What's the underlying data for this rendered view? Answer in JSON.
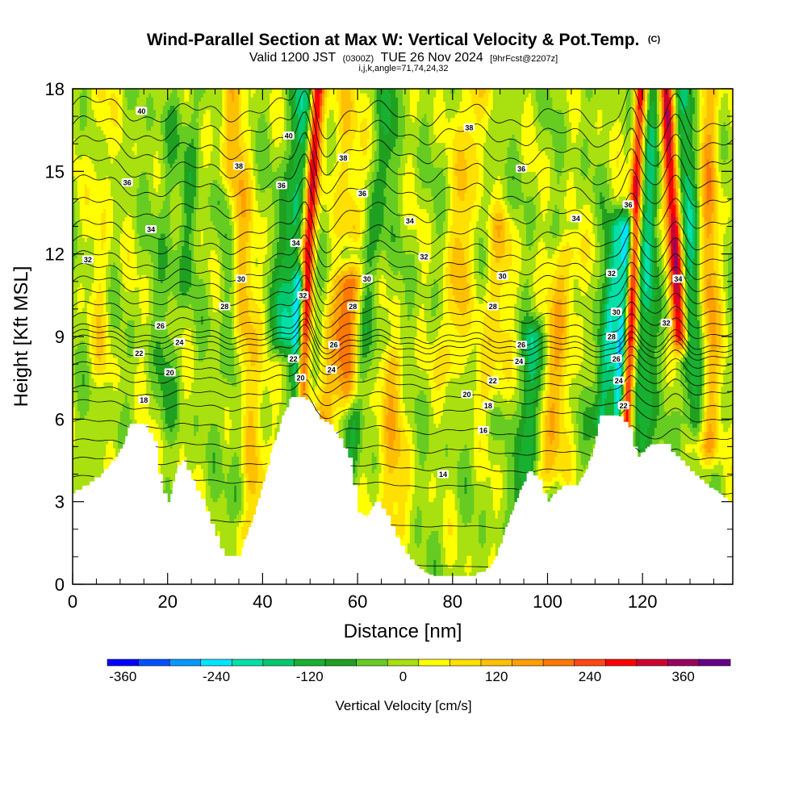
{
  "header": {
    "title": "Wind-Parallel Section at Max W: Vertical Velocity & Pot.Temp.",
    "title_mark": "(C)",
    "subtitle_a": "Valid 1200 JST",
    "subtitle_b": "(0300Z)",
    "subtitle_c": "TUE 26 Nov 2024",
    "subtitle_d": "[9hrFcst@2207z]",
    "line3": "i,j,k,angle=71,74,24,32"
  },
  "chart_data": {
    "type": "heatmap",
    "xlabel": "Distance [nm]",
    "ylabel": "Height [Kft MSL]",
    "xlim": [
      0,
      139
    ],
    "ylim": [
      0,
      18
    ],
    "x_ticks": [
      0,
      20,
      40,
      60,
      80,
      100,
      120
    ],
    "y_ticks": [
      0,
      3,
      6,
      9,
      12,
      15,
      18
    ],
    "colorbar": {
      "title": "Vertical Velocity [cm/s]",
      "tick_values": [
        -360,
        -240,
        -120,
        0,
        120,
        240,
        360
      ],
      "tick_labels": [
        "-360",
        "-240",
        "-120",
        "0",
        "120",
        "240",
        "360"
      ],
      "bins_min": -380,
      "bins_max": 380,
      "bin_width": 40,
      "colors": [
        "#0000ff",
        "#0050ff",
        "#0099ff",
        "#00e5ff",
        "#00e0a8",
        "#00c870",
        "#18b030",
        "#20a020",
        "#66cc22",
        "#a8e010",
        "#ffff00",
        "#ffe000",
        "#ffc000",
        "#ffa000",
        "#ff7800",
        "#ff4810",
        "#ff0000",
        "#cc0030",
        "#990060",
        "#660088"
      ]
    },
    "terrain_kft": [
      [
        0,
        3.3
      ],
      [
        3,
        3.6
      ],
      [
        6,
        4.0
      ],
      [
        9,
        4.6
      ],
      [
        11,
        5.2
      ],
      [
        12,
        5.8
      ],
      [
        15,
        5.8
      ],
      [
        17,
        5.2
      ],
      [
        18,
        4.0
      ],
      [
        19,
        3.3
      ],
      [
        20,
        2.9
      ],
      [
        21,
        3.5
      ],
      [
        22,
        4.2
      ],
      [
        23,
        4.5
      ],
      [
        25,
        3.8
      ],
      [
        26,
        3.4
      ],
      [
        27,
        3.1
      ],
      [
        29,
        2.2
      ],
      [
        31,
        1.3
      ],
      [
        32,
        1.0
      ],
      [
        35,
        1.0
      ],
      [
        36,
        1.5
      ],
      [
        38,
        2.4
      ],
      [
        40,
        3.6
      ],
      [
        42,
        4.9
      ],
      [
        44,
        6.0
      ],
      [
        46,
        6.8
      ],
      [
        48,
        6.8
      ],
      [
        50,
        6.6
      ],
      [
        52,
        6.0
      ],
      [
        54,
        5.8
      ],
      [
        56,
        5.3
      ],
      [
        58,
        4.6
      ],
      [
        60,
        2.6
      ],
      [
        62,
        2.4
      ],
      [
        64,
        3.0
      ],
      [
        66,
        2.5
      ],
      [
        68,
        1.7
      ],
      [
        70,
        1.1
      ],
      [
        72,
        0.7
      ],
      [
        74,
        0.4
      ],
      [
        76,
        0.3
      ],
      [
        80,
        0.3
      ],
      [
        84,
        0.3
      ],
      [
        88,
        0.6
      ],
      [
        90,
        1.4
      ],
      [
        92,
        2.4
      ],
      [
        94,
        3.3
      ],
      [
        96,
        4.1
      ],
      [
        98,
        3.8
      ],
      [
        99,
        3.3
      ],
      [
        100,
        3.0
      ],
      [
        102,
        3.4
      ],
      [
        104,
        3.6
      ],
      [
        106,
        3.6
      ],
      [
        108,
        4.1
      ],
      [
        110,
        5.1
      ],
      [
        111,
        6.1
      ],
      [
        115,
        6.1
      ],
      [
        117,
        5.7
      ],
      [
        118,
        5.0
      ],
      [
        119,
        4.6
      ],
      [
        121,
        5.0
      ],
      [
        123,
        5.1
      ],
      [
        125,
        5.1
      ],
      [
        126,
        4.8
      ],
      [
        128,
        4.5
      ],
      [
        130,
        4.1
      ],
      [
        132,
        3.8
      ],
      [
        134,
        3.5
      ],
      [
        136,
        3.3
      ],
      [
        138,
        3.0
      ],
      [
        139,
        2.9
      ]
    ],
    "w_features": [
      {
        "x": 49.5,
        "h0": 6,
        "h1": 18,
        "peak": 330,
        "halfwidth": 1.4,
        "tilt": 2.0
      },
      {
        "x": 47.5,
        "h0": 6.5,
        "h1": 11,
        "peak": -330,
        "halfwidth": 1.2,
        "tilt": 1.0
      },
      {
        "x": 46.5,
        "h0": 9,
        "h1": 18,
        "peak": -160,
        "halfwidth": 2.4,
        "tilt": 3.0
      },
      {
        "x": 36,
        "h0": 2,
        "h1": 18,
        "peak": 130,
        "halfwidth": 2.6,
        "tilt": -2.0
      },
      {
        "x": 33.5,
        "h0": 3,
        "h1": 14,
        "peak": -70,
        "halfwidth": 2.0,
        "tilt": -2.0
      },
      {
        "x": 55,
        "h0": 5,
        "h1": 11,
        "peak": 150,
        "halfwidth": 2.6,
        "tilt": 4.0
      },
      {
        "x": 59,
        "h0": 7,
        "h1": 11,
        "peak": 130,
        "halfwidth": 2.5,
        "tilt": 2.0
      },
      {
        "x": 62,
        "h0": 2,
        "h1": 18,
        "peak": -90,
        "halfwidth": 2.2,
        "tilt": 4.0
      },
      {
        "x": 67,
        "h0": 2,
        "h1": 8,
        "peak": 110,
        "halfwidth": 3.0,
        "tilt": 0
      },
      {
        "x": 58,
        "h0": 13,
        "h1": 18,
        "peak": 110,
        "halfwidth": 2.5,
        "tilt": -2.0
      },
      {
        "x": 82,
        "h0": 8,
        "h1": 18,
        "peak": 110,
        "halfwidth": 2.5,
        "tilt": 3.0
      },
      {
        "x": 96,
        "h0": 3,
        "h1": 9,
        "peak": -160,
        "halfwidth": 2.0,
        "tilt": 2.0
      },
      {
        "x": 89,
        "h0": 7,
        "h1": 13,
        "peak": 90,
        "halfwidth": 3.0,
        "tilt": 2.0
      },
      {
        "x": 102,
        "h0": 4,
        "h1": 12,
        "peak": 120,
        "halfwidth": 3.0,
        "tilt": 3.0
      },
      {
        "x": 113,
        "h0": 6,
        "h1": 13,
        "peak": -190,
        "halfwidth": 2.0,
        "tilt": 3.0
      },
      {
        "x": 116,
        "h0": 6,
        "h1": 13,
        "peak": -260,
        "halfwidth": 1.2,
        "tilt": 2.0
      },
      {
        "x": 118,
        "h0": 5,
        "h1": 18,
        "peak": 320,
        "halfwidth": 1.3,
        "tilt": 1.5
      },
      {
        "x": 121,
        "h0": 5,
        "h1": 18,
        "peak": -150,
        "halfwidth": 2.2,
        "tilt": 1.0
      },
      {
        "x": 126.5,
        "h0": 9,
        "h1": 18,
        "peak": 340,
        "halfwidth": 1.6,
        "tilt": -2.0
      },
      {
        "x": 130,
        "h0": 6,
        "h1": 18,
        "peak": -150,
        "halfwidth": 2.4,
        "tilt": -1.0
      },
      {
        "x": 134,
        "h0": 5,
        "h1": 18,
        "peak": 150,
        "halfwidth": 2.2,
        "tilt": 0
      },
      {
        "x": 6,
        "h0": 8,
        "h1": 18,
        "peak": 60,
        "halfwidth": 2.0,
        "tilt": 0
      },
      {
        "x": 20,
        "h0": 6,
        "h1": 17,
        "peak": -50,
        "halfwidth": 2.5,
        "tilt": 0
      },
      {
        "x": 25,
        "h0": 11,
        "h1": 18,
        "peak": -50,
        "halfwidth": 2.0,
        "tilt": 2.0
      }
    ],
    "theta_levels": [
      12,
      13,
      14,
      15,
      16,
      17,
      18,
      19,
      20,
      21,
      22,
      23,
      24,
      25,
      26,
      27,
      28,
      29,
      30,
      31,
      32,
      33,
      34,
      35,
      36,
      37,
      38,
      39,
      40
    ],
    "contour_labels": [
      {
        "text": "40",
        "x": 14.5,
        "y": 17.2
      },
      {
        "text": "36",
        "x": 11.5,
        "y": 14.6
      },
      {
        "text": "34",
        "x": 16.5,
        "y": 12.9
      },
      {
        "text": "32",
        "x": 3.2,
        "y": 11.8
      },
      {
        "text": "30",
        "x": 35.5,
        "y": 11.1
      },
      {
        "text": "28",
        "x": 32,
        "y": 10.1
      },
      {
        "text": "26",
        "x": 18.5,
        "y": 9.4
      },
      {
        "text": "24",
        "x": 22.5,
        "y": 8.8
      },
      {
        "text": "22",
        "x": 14,
        "y": 8.4
      },
      {
        "text": "20",
        "x": 20.5,
        "y": 7.7
      },
      {
        "text": "18",
        "x": 15,
        "y": 6.7
      },
      {
        "text": "38",
        "x": 35,
        "y": 15.2
      },
      {
        "text": "40",
        "x": 45.5,
        "y": 16.3
      },
      {
        "text": "36",
        "x": 44,
        "y": 14.5
      },
      {
        "text": "34",
        "x": 47,
        "y": 12.4
      },
      {
        "text": "32",
        "x": 48.5,
        "y": 10.5
      },
      {
        "text": "22",
        "x": 46.5,
        "y": 8.2
      },
      {
        "text": "20",
        "x": 48,
        "y": 7.5
      },
      {
        "text": "38",
        "x": 57,
        "y": 15.5
      },
      {
        "text": "36",
        "x": 61,
        "y": 14.2
      },
      {
        "text": "30",
        "x": 62,
        "y": 11.1
      },
      {
        "text": "28",
        "x": 59,
        "y": 10.1
      },
      {
        "text": "26",
        "x": 55,
        "y": 8.7
      },
      {
        "text": "24",
        "x": 54.5,
        "y": 7.8
      },
      {
        "text": "34",
        "x": 71,
        "y": 13.2
      },
      {
        "text": "32",
        "x": 74,
        "y": 11.9
      },
      {
        "text": "38",
        "x": 83.5,
        "y": 16.6
      },
      {
        "text": "36",
        "x": 94.5,
        "y": 15.1
      },
      {
        "text": "34",
        "x": 106,
        "y": 13.3
      },
      {
        "text": "30",
        "x": 90.5,
        "y": 11.2
      },
      {
        "text": "28",
        "x": 88.5,
        "y": 10.1
      },
      {
        "text": "26",
        "x": 94.5,
        "y": 8.7
      },
      {
        "text": "24",
        "x": 94,
        "y": 8.1
      },
      {
        "text": "22",
        "x": 88.5,
        "y": 7.4
      },
      {
        "text": "20",
        "x": 83,
        "y": 6.9
      },
      {
        "text": "18",
        "x": 87.5,
        "y": 6.5
      },
      {
        "text": "16",
        "x": 86.5,
        "y": 5.6
      },
      {
        "text": "14",
        "x": 78,
        "y": 4.0
      },
      {
        "text": "36",
        "x": 117,
        "y": 13.8
      },
      {
        "text": "32",
        "x": 113.5,
        "y": 11.3
      },
      {
        "text": "30",
        "x": 114.5,
        "y": 9.9
      },
      {
        "text": "28",
        "x": 113.5,
        "y": 9.0
      },
      {
        "text": "26",
        "x": 114.5,
        "y": 8.2
      },
      {
        "text": "24",
        "x": 115,
        "y": 7.4
      },
      {
        "text": "22",
        "x": 116,
        "y": 6.5
      },
      {
        "text": "34",
        "x": 127.5,
        "y": 11.1
      },
      {
        "text": "32",
        "x": 125,
        "y": 9.5
      }
    ]
  }
}
